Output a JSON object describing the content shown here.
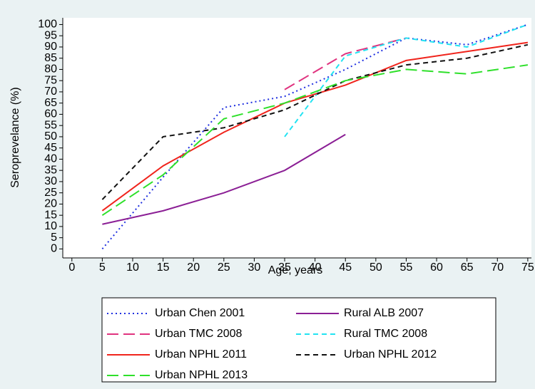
{
  "chart_data": {
    "type": "line",
    "xlabel": "Age, years",
    "ylabel": "Seroprevelance (%)",
    "x": [
      5,
      15,
      25,
      35,
      45,
      55,
      65,
      75
    ],
    "series": [
      {
        "name": "Urban Chen 2001",
        "color": "#1f2fe0",
        "dash": "dot",
        "values": [
          0,
          32,
          63,
          68,
          80,
          94,
          91,
          100
        ]
      },
      {
        "name": "Rural ALB 2007",
        "color": "#8b1f95",
        "dash": "solid",
        "values": [
          11,
          17,
          25,
          35,
          51,
          null,
          null,
          null
        ]
      },
      {
        "name": "Urban TMC 2008",
        "color": "#e0337f",
        "dash": "longdash",
        "values": [
          null,
          null,
          null,
          71,
          87,
          94,
          null,
          100
        ]
      },
      {
        "name": "Rural TMC 2008",
        "color": "#22e3f2",
        "dash": "dash",
        "values": [
          null,
          null,
          null,
          50,
          86,
          94,
          90,
          100
        ]
      },
      {
        "name": "Urban NPHL 2011",
        "color": "#f0241c",
        "dash": "solid",
        "values": [
          17,
          37,
          52,
          65,
          73,
          84,
          88,
          92
        ]
      },
      {
        "name": "Urban NPHL 2012",
        "color": "#111111",
        "dash": "dash",
        "values": [
          22,
          50,
          54,
          62,
          75,
          82,
          85,
          91
        ]
      },
      {
        "name": "Urban NPHL 2013",
        "color": "#2ee02a",
        "dash": "longdash",
        "values": [
          15,
          33,
          58,
          65,
          75,
          80,
          78,
          82
        ]
      }
    ],
    "xlim": [
      -1.5,
      75.6
    ],
    "ylim": [
      -4,
      103
    ],
    "xticks": [
      0,
      5,
      10,
      15,
      20,
      25,
      30,
      35,
      40,
      45,
      50,
      55,
      60,
      65,
      70,
      75
    ],
    "yticks": [
      0,
      5,
      10,
      15,
      20,
      25,
      30,
      35,
      40,
      45,
      50,
      55,
      60,
      65,
      70,
      75,
      80,
      85,
      90,
      95,
      100
    ],
    "grid": false
  }
}
